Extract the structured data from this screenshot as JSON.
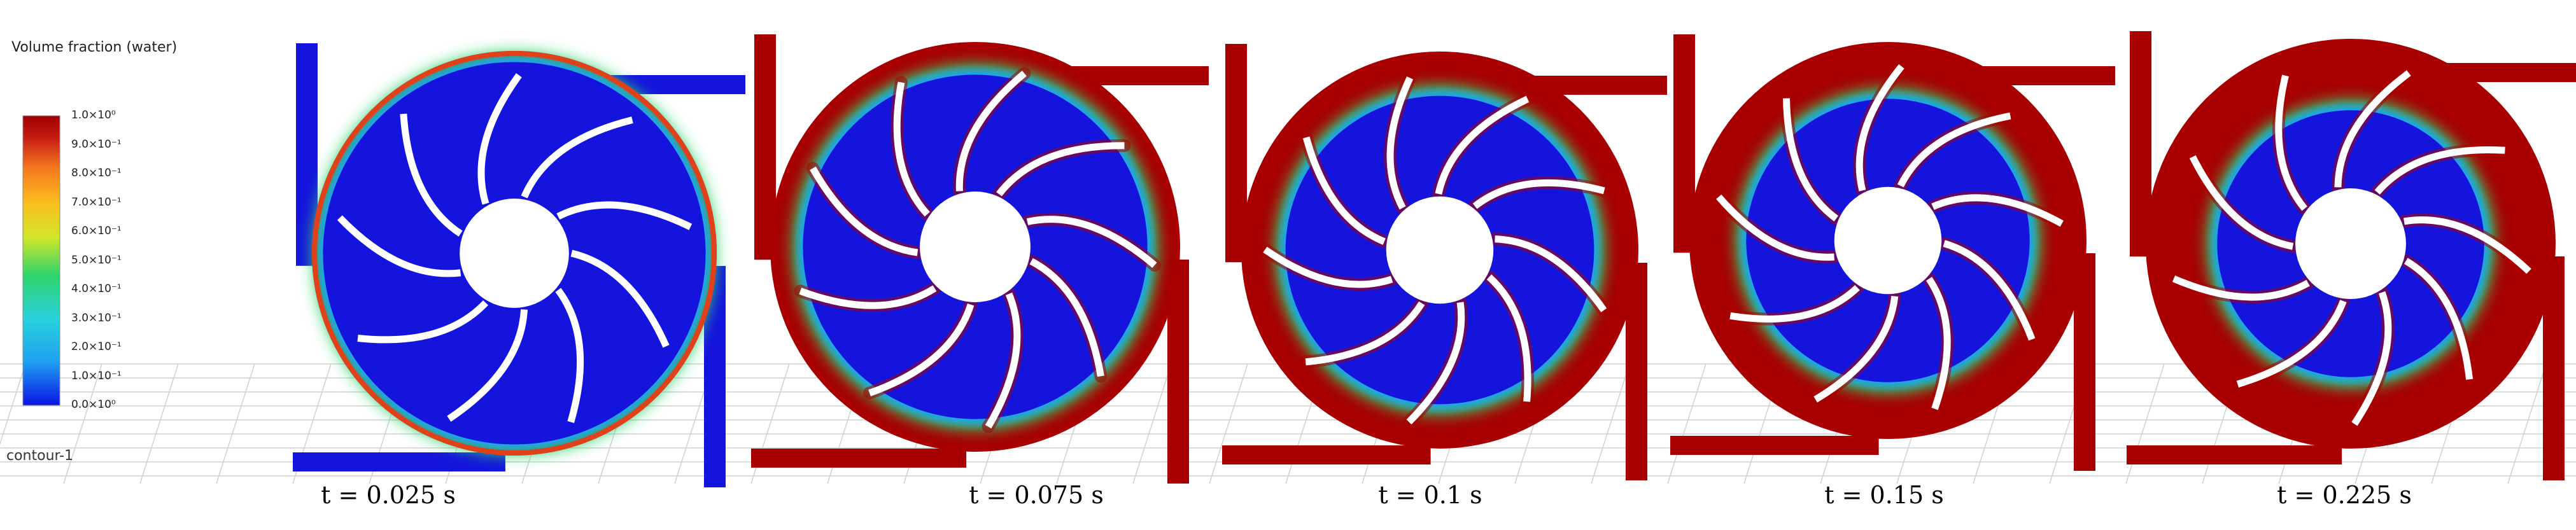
{
  "legend": {
    "title": "Volume fraction (water)",
    "ticks": [
      {
        "value": 1.0,
        "label": "1.0×10⁰"
      },
      {
        "value": 0.9,
        "label": "9.0×10⁻¹"
      },
      {
        "value": 0.8,
        "label": "8.0×10⁻¹"
      },
      {
        "value": 0.7,
        "label": "7.0×10⁻¹"
      },
      {
        "value": 0.6,
        "label": "6.0×10⁻¹"
      },
      {
        "value": 0.5,
        "label": "5.0×10⁻¹"
      },
      {
        "value": 0.4,
        "label": "4.0×10⁻¹"
      },
      {
        "value": 0.3,
        "label": "3.0×10⁻¹"
      },
      {
        "value": 0.2,
        "label": "2.0×10⁻¹"
      },
      {
        "value": 0.1,
        "label": "1.0×10⁻¹"
      },
      {
        "value": 0.0,
        "label": "0.0×10⁰"
      }
    ],
    "colors": [
      "#0a14e6",
      "#1ea0f0",
      "#28d2dc",
      "#2ed46a",
      "#d2e628",
      "#fabe1e",
      "#f5781e",
      "#c81e14",
      "#a00000"
    ]
  },
  "contour_label": "contour-1",
  "panels": [
    {
      "time": "t = 0.025 s",
      "fill": 0.05
    },
    {
      "time": "t = 0.075 s",
      "fill": 0.3
    },
    {
      "time": "t = 0.1 s",
      "fill": 0.45
    },
    {
      "time": "t = 0.15 s",
      "fill": 0.6
    },
    {
      "time": "t = 0.225 s",
      "fill": 0.75
    }
  ],
  "colors": {
    "water": "#a80000",
    "air": "#1414dc",
    "blade": "#ffffff",
    "grid": "#d0d0d0"
  }
}
